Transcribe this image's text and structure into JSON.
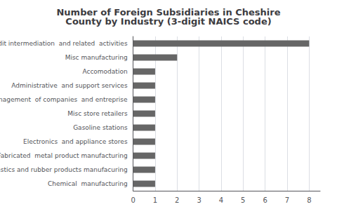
{
  "chart_data": {
    "type": "bar",
    "orientation": "horizontal",
    "title": "Number of Foreign Subsidiaries in Cheshire\nCounty by Industry (3-digit NAICS code)",
    "categories": [
      "Chemical  manufacturing",
      "Plastics and rubber products manufacuring",
      "Fabricated  metal product manufacturing",
      "Electronics  and appliance stores",
      "Gasoline stations",
      "Misc store retailers",
      "Management  of companies  and entreprise",
      "Administrative  and support services",
      "Accomodation",
      "Misc manufacturing",
      "Credit intermediation  and related  activities"
    ],
    "values": [
      1,
      1,
      1,
      1,
      1,
      1,
      1,
      1,
      1,
      2,
      8
    ],
    "color": "#666666",
    "xlim": [
      0,
      8.5
    ],
    "xticks": [
      0,
      1,
      2,
      3,
      4,
      5,
      6,
      7,
      8
    ],
    "grid": true
  }
}
